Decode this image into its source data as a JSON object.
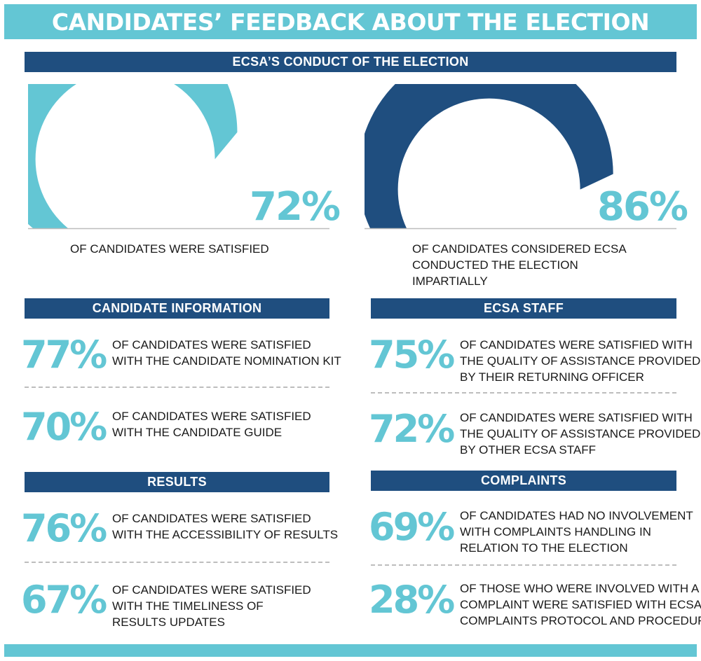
{
  "title": "CANDIDATES’ FEEDBACK ABOUT THE ELECTION",
  "conduct": {
    "heading": "ECSA’S CONDUCT OF THE ELECTION",
    "gauges": [
      {
        "percent": "72%",
        "value": 72,
        "color": "#63c6d4",
        "caption": "OF CANDIDATES WERE SATISFIED"
      },
      {
        "percent": "86%",
        "value": 86,
        "color": "#1f4e7f",
        "caption": "OF CANDIDATES CONSIDERED ECSA CONDUCTED THE ELECTION IMPARTIALLY"
      }
    ]
  },
  "candidate_information": {
    "heading": "CANDIDATE INFORMATION",
    "stats": [
      {
        "percent": "77%",
        "text": [
          "OF CANDIDATES WERE SATISFIED",
          "WITH THE CANDIDATE NOMINATION KIT"
        ]
      },
      {
        "percent": "70%",
        "text": [
          "OF CANDIDATES WERE SATISFIED",
          "WITH  THE CANDIDATE GUIDE"
        ]
      }
    ]
  },
  "ecsa_staff": {
    "heading": "ECSA STAFF",
    "stats": [
      {
        "percent": "75%",
        "text": [
          "OF CANDIDATES WERE SATISFIED WITH",
          "THE QUALITY OF ASSISTANCE PROVIDED",
          "BY THEIR RETURNING OFFICER"
        ]
      },
      {
        "percent": "72%",
        "text": [
          "OF CANDIDATES WERE SATISFIED WITH",
          "THE QUALITY OF ASSISTANCE PROVIDED",
          "BY OTHER ECSA STAFF"
        ]
      }
    ]
  },
  "results": {
    "heading": "RESULTS",
    "stats": [
      {
        "percent": "76%",
        "text": [
          "OF CANDIDATES WERE SATISFIED",
          "WITH THE ACCESSIBILITY OF RESULTS"
        ]
      },
      {
        "percent": "67%",
        "text": [
          "OF CANDIDATES WERE SATISFIED",
          "WITH THE TIMELINESS OF",
          "RESULTS UPDATES"
        ]
      }
    ]
  },
  "complaints": {
    "heading": "COMPLAINTS",
    "stats": [
      {
        "percent": "69%",
        "text": [
          "OF CANDIDATES HAD NO INVOLVEMENT",
          "WITH COMPLAINTS HANDLING IN",
          "RELATION TO THE ELECTION"
        ]
      },
      {
        "percent": "28%",
        "text": [
          "OF THOSE WHO WERE INVOLVED WITH A",
          "COMPLAINT WERE SATISFIED WITH ECSA’S",
          "COMPLAINTS PROTOCOL AND PROCEDURES"
        ]
      }
    ]
  },
  "colors": {
    "accent": "#63c6d4",
    "navy": "#1f4e7f"
  }
}
